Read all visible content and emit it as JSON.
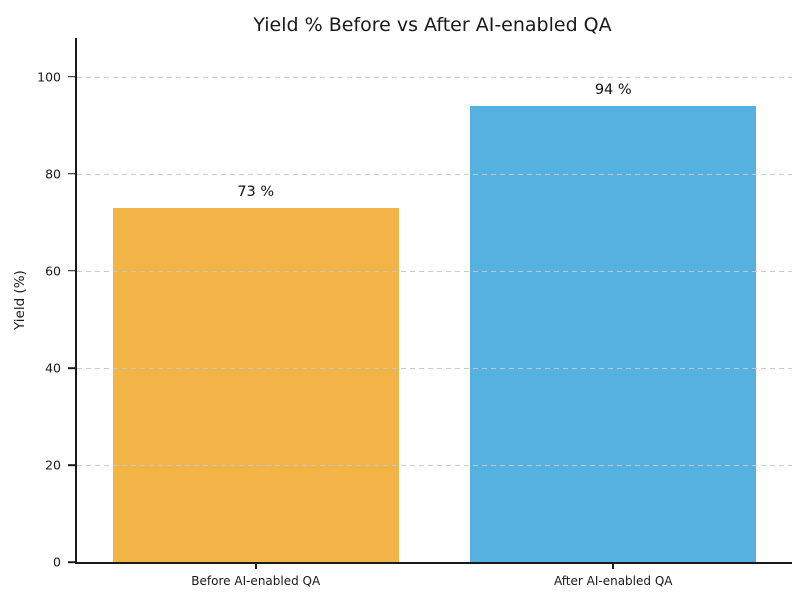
{
  "figure": {
    "background": "#ffffff"
  },
  "chart_data": {
    "type": "bar",
    "title": "Yield % Before vs After AI-enabled QA",
    "categories": [
      "Before AI-enabled QA",
      "After AI-enabled QA"
    ],
    "values": [
      73,
      94
    ],
    "value_labels": [
      "73 %",
      "94 %"
    ],
    "bar_colors": [
      "#F2B446",
      "#57B1E0"
    ],
    "xlabel": "",
    "ylabel": "Yield (%)",
    "ylim": [
      0,
      108
    ],
    "yticks": [
      0,
      20,
      40,
      60,
      80,
      100
    ],
    "grid": "horizontal dashed gridlines at y-ticks, drawn over bars",
    "grid_color": "#c8c8c8",
    "axis_color": "#1a1a1a",
    "legend": "none"
  }
}
